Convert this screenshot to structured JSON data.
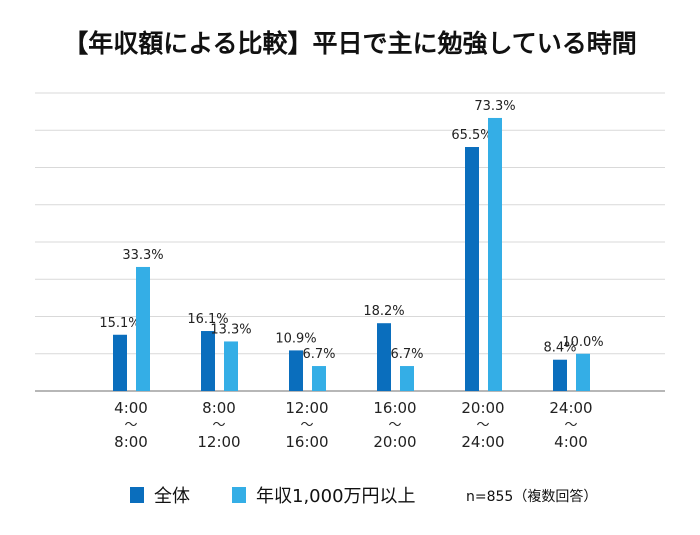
{
  "title": "【年収額による比較】平日で主に勉強している時間",
  "note": "n=855（複数回答）",
  "colors": {
    "series1": "#0a6ebd",
    "series2": "#34aee6",
    "grid": "#d9d9d9",
    "axis": "#8c8c8c"
  },
  "chart_data": {
    "type": "bar",
    "title": "【年収額による比較】平日で主に勉強している時間",
    "xlabel": "",
    "ylabel": "",
    "ylim": [
      0,
      80
    ],
    "grid": true,
    "legend_position": "bottom",
    "categories": [
      [
        "4:00",
        "〜",
        "8:00"
      ],
      [
        "8:00",
        "〜",
        "12:00"
      ],
      [
        "12:00",
        "〜",
        "16:00"
      ],
      [
        "16:00",
        "〜",
        "20:00"
      ],
      [
        "20:00",
        "〜",
        "24:00"
      ],
      [
        "24:00",
        "〜",
        "4:00"
      ]
    ],
    "series": [
      {
        "name": "全体",
        "values": [
          15.1,
          16.1,
          10.9,
          18.2,
          65.5,
          8.4
        ],
        "labels": [
          "15.1%",
          "16.1%",
          "10.9%",
          "18.2%",
          "65.5%",
          "8.4%"
        ]
      },
      {
        "name": "年収1,000万円以上",
        "values": [
          33.3,
          13.3,
          6.7,
          6.7,
          73.3,
          10.0
        ],
        "labels": [
          "33.3%",
          "13.3%",
          "6.7%",
          "6.7%",
          "73.3%",
          "10.0%"
        ]
      }
    ]
  }
}
